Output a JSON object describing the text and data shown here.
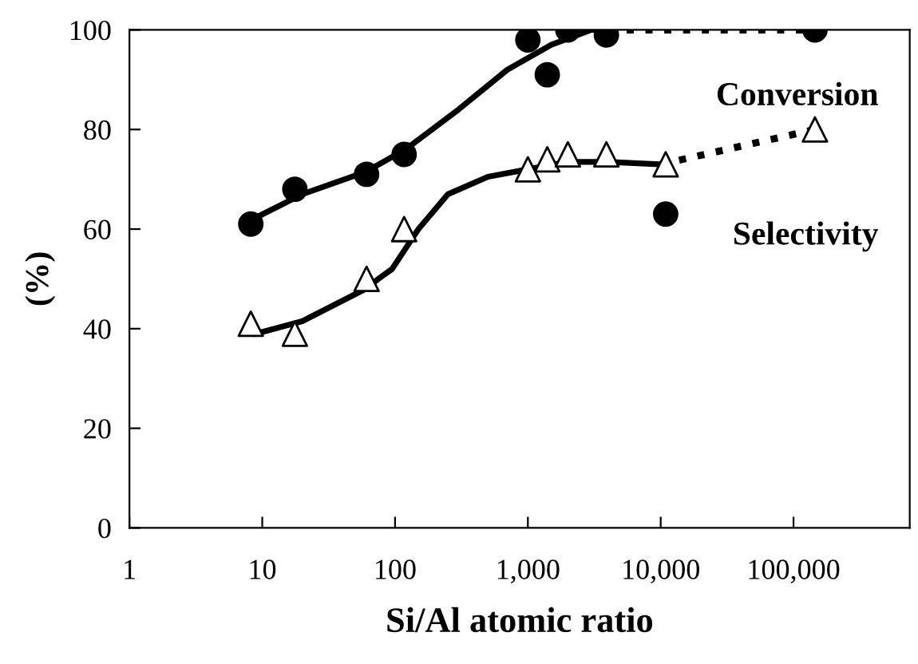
{
  "chart_data": {
    "type": "scatter",
    "xlabel": "Si/Al atomic ratio",
    "ylabel": "(%)",
    "log": "x",
    "xlim": [
      1,
      750000
    ],
    "xticks": [
      {
        "value": 1,
        "label": "1"
      },
      {
        "value": 10,
        "label": "10"
      },
      {
        "value": 100,
        "label": "100"
      },
      {
        "value": 1000,
        "label": "1,000"
      },
      {
        "value": 10000,
        "label": "10,000"
      },
      {
        "value": 100000,
        "label": "100,000"
      }
    ],
    "ylim": [
      0,
      100
    ],
    "yticks": [
      0,
      20,
      40,
      60,
      80,
      100
    ],
    "grid": false,
    "legend": false,
    "annotations": [
      "Conversion",
      "Selectivity"
    ],
    "series": [
      {
        "type": "line",
        "color": "#000000",
        "line_style": "solid",
        "marker": "none",
        "x": [
          8.5,
          20,
          60,
          120,
          300,
          700,
          1500,
          3000,
          4000
        ],
        "values": [
          62,
          67,
          71.5,
          76,
          84,
          92,
          97,
          100,
          100
        ]
      },
      {
        "type": "line",
        "color": "#000000",
        "line_style": "dotted",
        "marker": "none",
        "x": [
          4000,
          145000
        ],
        "values": [
          100,
          100
        ]
      },
      {
        "type": "line",
        "color": "#000000",
        "line_style": "solid",
        "marker": "none",
        "x": [
          9,
          20,
          60,
          75,
          95,
          150,
          250,
          500,
          1000,
          2000,
          4000,
          10000
        ],
        "values": [
          39,
          41.5,
          48,
          50,
          52,
          60,
          67,
          70.5,
          72,
          73.5,
          73.5,
          73
        ]
      },
      {
        "type": "line",
        "color": "#000000",
        "line_style": "dotted",
        "marker": "none",
        "x": [
          10000,
          145000
        ],
        "values": [
          73,
          80
        ]
      },
      {
        "color": "#000000",
        "marker": "circle",
        "x": [
          8.2,
          17.6,
          61,
          117,
          1000,
          1400,
          2000,
          3900,
          145000,
          10900
        ],
        "values": [
          61,
          68,
          71,
          75,
          98,
          91,
          100,
          99,
          100,
          63
        ]
      },
      {
        "color": "#000000",
        "marker": "triangle",
        "x": [
          8.2,
          17.6,
          61,
          117,
          1000,
          1400,
          2000,
          3900,
          10900,
          145000
        ],
        "values": [
          41,
          39,
          50,
          60,
          72,
          74,
          75,
          75,
          73,
          80
        ]
      }
    ]
  }
}
